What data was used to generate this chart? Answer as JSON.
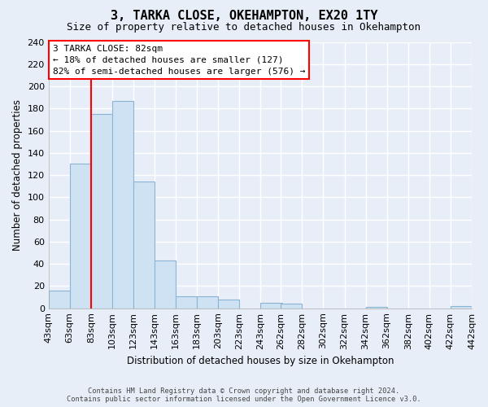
{
  "title": "3, TARKA CLOSE, OKEHAMPTON, EX20 1TY",
  "subtitle": "Size of property relative to detached houses in Okehampton",
  "xlabel": "Distribution of detached houses by size in Okehampton",
  "ylabel": "Number of detached properties",
  "bar_color": "#cfe2f3",
  "bar_edge_color": "#8ab4d4",
  "background_color": "#e8eef8",
  "plot_bg_color": "#e8eef8",
  "grid_color": "#ffffff",
  "bins": [
    43,
    63,
    83,
    103,
    123,
    143,
    163,
    183,
    203,
    223,
    243,
    262,
    282,
    302,
    322,
    342,
    362,
    382,
    402,
    422,
    442
  ],
  "bin_labels": [
    "43sqm",
    "63sqm",
    "83sqm",
    "103sqm",
    "123sqm",
    "143sqm",
    "163sqm",
    "183sqm",
    "203sqm",
    "223sqm",
    "243sqm",
    "262sqm",
    "282sqm",
    "302sqm",
    "322sqm",
    "342sqm",
    "362sqm",
    "382sqm",
    "402sqm",
    "422sqm",
    "442sqm"
  ],
  "values": [
    16,
    130,
    175,
    187,
    114,
    43,
    11,
    11,
    8,
    0,
    5,
    4,
    0,
    0,
    0,
    1,
    0,
    0,
    0,
    2
  ],
  "ylim": [
    0,
    240
  ],
  "yticks": [
    0,
    20,
    40,
    60,
    80,
    100,
    120,
    140,
    160,
    180,
    200,
    220,
    240
  ],
  "property_line_x": 83,
  "annotation_title": "3 TARKA CLOSE: 82sqm",
  "annotation_line1": "← 18% of detached houses are smaller (127)",
  "annotation_line2": "82% of semi-detached houses are larger (576) →",
  "footer_line1": "Contains HM Land Registry data © Crown copyright and database right 2024.",
  "footer_line2": "Contains public sector information licensed under the Open Government Licence v3.0."
}
